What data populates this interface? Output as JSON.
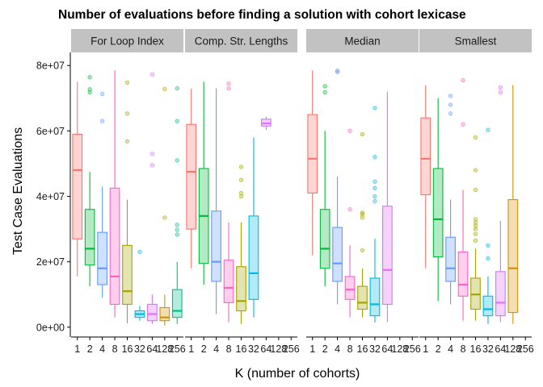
{
  "chart_data": {
    "type": "boxplot",
    "title": "Number of evaluations before finding a solution with cohort lexicase",
    "xlabel": "K (number of cohorts)",
    "ylabel": "Test Case Evaluations",
    "y_ticks": [
      {
        "value": 0,
        "label": "0e+00"
      },
      {
        "value": 20000000,
        "label": "2e+07"
      },
      {
        "value": 40000000,
        "label": "4e+07"
      },
      {
        "value": 60000000,
        "label": "6e+07"
      },
      {
        "value": 80000000,
        "label": "8e+07"
      }
    ],
    "ylim": [
      -3000000,
      84000000
    ],
    "categories": [
      "1",
      "2",
      "4",
      "8",
      "16",
      "32",
      "64",
      "128",
      "256"
    ],
    "colors": [
      "#F8766D",
      "#53B400",
      "#619CFF",
      "#FF61C3",
      "#A3A500",
      "#00B8E7",
      "#DB72FB",
      "#D39200",
      "#00C08B"
    ],
    "grid": false,
    "legend": "none",
    "panels": [
      {
        "name": "For Loop Index",
        "boxes": [
          {
            "k": "1",
            "color": "#F8766D",
            "min": 15500000,
            "q1": 27000000,
            "median": 48000000,
            "q3": 59000000,
            "max": 75000000,
            "outliers": []
          },
          {
            "k": "2",
            "color": "#00BA38",
            "min": 12500000,
            "q1": 19000000,
            "median": 24000000,
            "q3": 36000000,
            "max": 47500000,
            "outliers": [
              71800000,
              72700000,
              76400000
            ]
          },
          {
            "k": "4",
            "color": "#619CFF",
            "min": 9000000,
            "q1": 13000000,
            "median": 18000000,
            "q3": 29000000,
            "max": 43000000,
            "outliers": [
              63000000,
              71300000
            ]
          },
          {
            "k": "8",
            "color": "#FF61C3",
            "min": 3000000,
            "q1": 7000000,
            "median": 15500000,
            "q3": 42500000,
            "max": 78500000,
            "outliers": []
          },
          {
            "k": "16",
            "color": "#A3A500",
            "min": 1200000,
            "q1": 7000000,
            "median": 11000000,
            "q3": 25000000,
            "max": 39000000,
            "outliers": [
              56800000,
              65300000,
              74800000
            ]
          },
          {
            "k": "32",
            "color": "#00B8E7",
            "min": 2000000,
            "q1": 3000000,
            "median": 4000000,
            "q3": 5000000,
            "max": 6500000,
            "outliers": [
              23000000
            ]
          },
          {
            "k": "64",
            "color": "#DB72FB",
            "min": 1000000,
            "q1": 2000000,
            "median": 4000000,
            "q3": 7000000,
            "max": 10000000,
            "outliers": [
              49500000,
              53000000,
              77300000
            ]
          },
          {
            "k": "128",
            "color": "#D39200",
            "min": 500000,
            "q1": 2000000,
            "median": 3000000,
            "q3": 6000000,
            "max": 10000000,
            "outliers": [
              33500000,
              72800000
            ]
          },
          {
            "k": "256",
            "color": "#00C08B",
            "min": 1000000,
            "q1": 3000000,
            "median": 5000000,
            "q3": 11500000,
            "max": 20000000,
            "outliers": [
              28300000,
              29800000,
              31300000,
              51000000,
              63000000,
              73000000
            ]
          }
        ]
      },
      {
        "name": "Comp. Str. Lengths",
        "boxes": [
          {
            "k": "1",
            "color": "#F8766D",
            "min": 18000000,
            "q1": 30000000,
            "median": 47500000,
            "q3": 62000000,
            "max": 73000000,
            "outliers": []
          },
          {
            "k": "2",
            "color": "#00BA38",
            "min": 13000000,
            "q1": 19500000,
            "median": 34000000,
            "q3": 48500000,
            "max": 75000000,
            "outliers": []
          },
          {
            "k": "4",
            "color": "#619CFF",
            "min": 4000000,
            "q1": 14000000,
            "median": 20000000,
            "q3": 35500000,
            "max": 73000000,
            "outliers": []
          },
          {
            "k": "8",
            "color": "#FF61C3",
            "min": 1500000,
            "q1": 7500000,
            "median": 12000000,
            "q3": 20500000,
            "max": 32000000,
            "outliers": [
              73000000,
              74500000
            ]
          },
          {
            "k": "16",
            "color": "#A3A500",
            "min": 1000000,
            "q1": 5000000,
            "median": 8000000,
            "q3": 18500000,
            "max": 32000000,
            "outliers": [
              40000000,
              41000000,
              45000000,
              49000000
            ]
          },
          {
            "k": "32",
            "color": "#00B8E7",
            "min": 3000000,
            "q1": 8500000,
            "median": 16500000,
            "q3": 34000000,
            "max": 58000000,
            "outliers": []
          },
          {
            "k": "64",
            "color": "#DB72FB",
            "min": 60300000,
            "q1": 61500000,
            "median": 62300000,
            "q3": 63600000,
            "max": 64400000,
            "outliers": []
          },
          {
            "k": "128",
            "color": "#D39200",
            "min": null,
            "q1": null,
            "median": null,
            "q3": null,
            "max": null,
            "outliers": []
          },
          {
            "k": "256",
            "color": "#00C08B",
            "min": null,
            "q1": null,
            "median": null,
            "q3": null,
            "max": null,
            "outliers": []
          }
        ]
      },
      {
        "name": "Median",
        "boxes": [
          {
            "k": "1",
            "color": "#F8766D",
            "min": 22000000,
            "q1": 41000000,
            "median": 51500000,
            "q3": 65000000,
            "max": 78500000,
            "outliers": []
          },
          {
            "k": "2",
            "color": "#00BA38",
            "min": 12500000,
            "q1": 18000000,
            "median": 24000000,
            "q3": 36000000,
            "max": 60000000,
            "outliers": [
              71800000,
              73700000
            ]
          },
          {
            "k": "4",
            "color": "#619CFF",
            "min": 7000000,
            "q1": 14000000,
            "median": 19500000,
            "q3": 30500000,
            "max": 46000000,
            "outliers": [
              78000000,
              78400000
            ]
          },
          {
            "k": "8",
            "color": "#FF61C3",
            "min": 3000000,
            "q1": 8500000,
            "median": 11500000,
            "q3": 15500000,
            "max": 25000000,
            "outliers": [
              36000000,
              60000000
            ]
          },
          {
            "k": "16",
            "color": "#A3A500",
            "min": 3000000,
            "q1": 5500000,
            "median": 7500000,
            "q3": 12500000,
            "max": 18000000,
            "outliers": [
              23500000,
              33500000,
              34500000,
              35000000,
              59000000
            ]
          },
          {
            "k": "32",
            "color": "#00B8E7",
            "min": 1500000,
            "q1": 3500000,
            "median": 7000000,
            "q3": 15000000,
            "max": 27000000,
            "outliers": [
              38500000,
              40000000,
              42500000,
              44500000,
              52000000,
              67000000
            ]
          },
          {
            "k": "64",
            "color": "#DB72FB",
            "min": 1500000,
            "q1": 7000000,
            "median": 17500000,
            "q3": 37000000,
            "max": 72000000,
            "outliers": []
          },
          {
            "k": "128",
            "color": "#D39200",
            "min": null,
            "q1": null,
            "median": null,
            "q3": null,
            "max": null,
            "outliers": []
          },
          {
            "k": "256",
            "color": "#00C08B",
            "min": null,
            "q1": null,
            "median": null,
            "q3": null,
            "max": null,
            "outliers": []
          }
        ]
      },
      {
        "name": "Smallest",
        "boxes": [
          {
            "k": "1",
            "color": "#F8766D",
            "min": 18000000,
            "q1": 40500000,
            "median": 51500000,
            "q3": 64000000,
            "max": 74000000,
            "outliers": []
          },
          {
            "k": "2",
            "color": "#00BA38",
            "min": 8000000,
            "q1": 21500000,
            "median": 33000000,
            "q3": 48500000,
            "max": 70000000,
            "outliers": []
          },
          {
            "k": "4",
            "color": "#619CFF",
            "min": 7000000,
            "q1": 14000000,
            "median": 18000000,
            "q3": 27500000,
            "max": 39000000,
            "outliers": [
              65300000,
              68000000,
              70700000
            ]
          },
          {
            "k": "8",
            "color": "#FF61C3",
            "min": 2000000,
            "q1": 9500000,
            "median": 13000000,
            "q3": 23000000,
            "max": 42000000,
            "outliers": [
              62000000,
              75500000
            ]
          },
          {
            "k": "16",
            "color": "#A3A500",
            "min": 2000000,
            "q1": 5500000,
            "median": 10000000,
            "q3": 15000000,
            "max": 24000000,
            "outliers": [
              26500000,
              28500000,
              30000000,
              31000000,
              32000000,
              33000000,
              42000000,
              48000000,
              58000000
            ]
          },
          {
            "k": "32",
            "color": "#00B8E7",
            "min": 1000000,
            "q1": 3500000,
            "median": 5500000,
            "q3": 9500000,
            "max": 15500000,
            "outliers": [
              21000000,
              25000000,
              60300000
            ]
          },
          {
            "k": "64",
            "color": "#DB72FB",
            "min": 1500000,
            "q1": 3500000,
            "median": 7500000,
            "q3": 17000000,
            "max": 32500000,
            "outliers": [
              71800000,
              73300000
            ]
          },
          {
            "k": "128",
            "color": "#D39200",
            "min": 1000000,
            "q1": 4500000,
            "median": 18000000,
            "q3": 39000000,
            "max": 74000000,
            "outliers": []
          },
          {
            "k": "256",
            "color": "#00C08B",
            "min": null,
            "q1": null,
            "median": null,
            "q3": null,
            "max": null,
            "outliers": []
          }
        ]
      }
    ]
  }
}
